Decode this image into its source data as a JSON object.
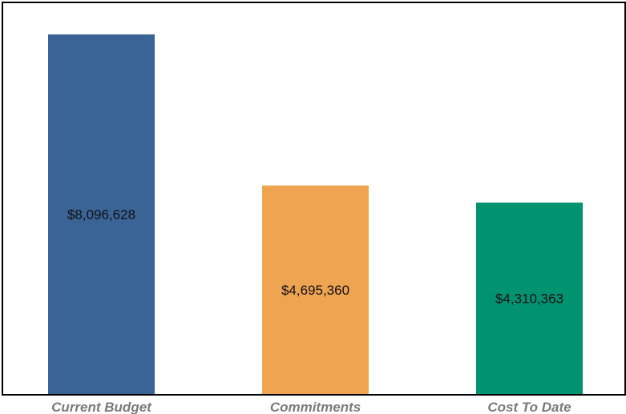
{
  "chart_data": {
    "type": "bar",
    "categories": [
      "Current Budget",
      "Commitments",
      "Cost To Date"
    ],
    "values": [
      8096628,
      4695360,
      4310363
    ],
    "data_labels": [
      "$8,096,628",
      "$4,695,360",
      "$4,310,363"
    ],
    "colors": [
      "#3b6496",
      "#eea451",
      "#019270"
    ],
    "title": "",
    "xlabel": "",
    "ylabel": "",
    "ylim": [
      0,
      8800000
    ],
    "grid": false,
    "legend": "none"
  }
}
